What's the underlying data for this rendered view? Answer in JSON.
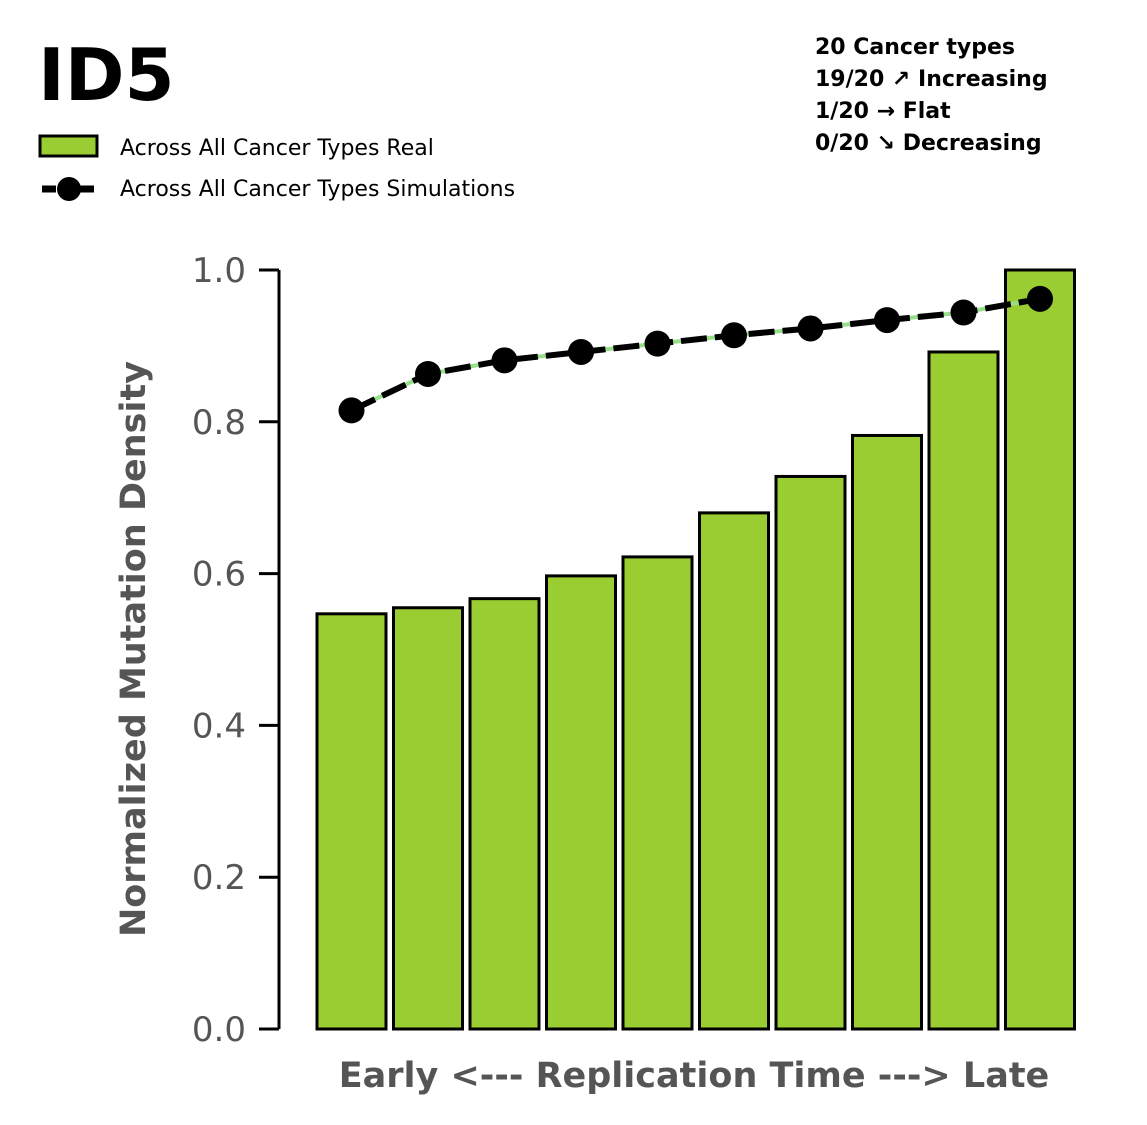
{
  "chart_data": {
    "type": "bar",
    "title": "ID5",
    "xlabel": "Early <--- Replication Time ---> Late",
    "ylabel": "Normalized Mutation Density",
    "ylim": [
      0,
      1.0
    ],
    "yticks": [
      "0.0",
      "0.2",
      "0.4",
      "0.6",
      "0.8",
      "1.0"
    ],
    "grid": false,
    "legend_position": "top-left",
    "series": [
      {
        "name": "Across All Cancer Types Real",
        "type": "bar",
        "color": "#9acd32",
        "values": [
          0.547,
          0.555,
          0.567,
          0.597,
          0.622,
          0.68,
          0.728,
          0.782,
          0.892,
          1.0
        ]
      },
      {
        "name": "Across All Cancer Types Simulations",
        "type": "line",
        "color": "#000000",
        "values": [
          0.815,
          0.863,
          0.881,
          0.892,
          0.903,
          0.914,
          0.923,
          0.934,
          0.944,
          0.962
        ]
      }
    ],
    "annotations": [
      "20 Cancer types",
      "19/20 ↗ Increasing",
      "1/20 → Flat",
      "0/20 ↘ Decreasing"
    ]
  },
  "colors": {
    "bar_fill": "#9acd32",
    "bar_edge": "#000000",
    "sim_line": "#000000",
    "sim_underline": "#98df8a",
    "axis_text": "#555555"
  }
}
